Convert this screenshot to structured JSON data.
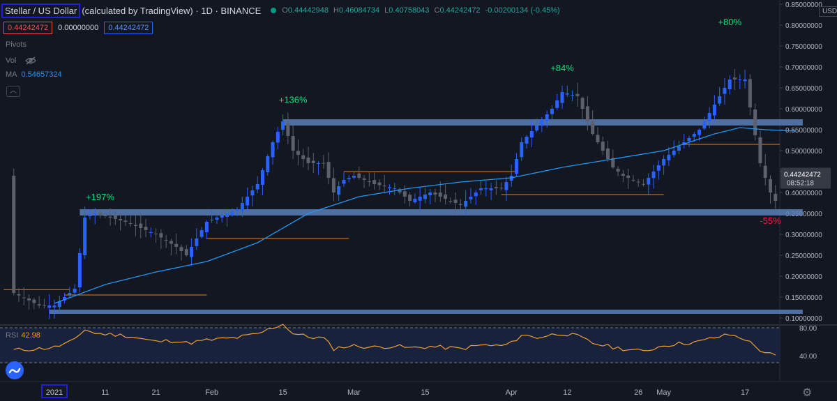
{
  "header": {
    "symbol": "Stellar / US Dollar",
    "meta": "(calculated by TradingView) · 1D · BINANCE",
    "ohlc": [
      {
        "k": "O",
        "v": "0.44442948"
      },
      {
        "k": "H",
        "v": "0.46084734"
      },
      {
        "k": "L",
        "v": "0.40758043"
      },
      {
        "k": "C",
        "v": "0.44242472"
      },
      {
        "k": "",
        "v": "-0.00200134 (-0.45%)"
      }
    ],
    "bid": "0.44242472",
    "spread": "0.00000000",
    "ask": "0.44242472",
    "pivots_label": "Pivots",
    "vol_label": "Vol",
    "ma_label": "MA",
    "ma_value": "0.54657324",
    "collapse_icon": "chevron-up-icon"
  },
  "currency": "USD",
  "price_badge": {
    "value": "0.44242472",
    "countdown": "08:52:18"
  },
  "rsi": {
    "label": "RSI",
    "value": "42.98"
  },
  "colors": {
    "bg": "#131722",
    "up": "#2962ff",
    "down": "#5d606b",
    "ma": "#2196f3",
    "zone": "#5b7fb8",
    "level": "#f57c00",
    "rsi": "#f0a030",
    "gain": "#00e676",
    "loss": "#ff1744"
  },
  "chart_data": {
    "type": "candlestick",
    "ylim": [
      0.1,
      0.85
    ],
    "y_ticks": [
      "0.85000000",
      "0.80000000",
      "0.75000000",
      "0.70000000",
      "0.65000000",
      "0.60000000",
      "0.55000000",
      "0.50000000",
      "0.45000000",
      "0.40000000",
      "0.35000000",
      "0.30000000",
      "0.25000000",
      "0.20000000",
      "0.15000000",
      "0.10000000"
    ],
    "x_ticks": [
      {
        "label": "2021",
        "day": 0,
        "highlight": true
      },
      {
        "label": "11",
        "day": 10
      },
      {
        "label": "21",
        "day": 20
      },
      {
        "label": "Feb",
        "day": 31
      },
      {
        "label": "15",
        "day": 45
      },
      {
        "label": "Mar",
        "day": 59
      },
      {
        "label": "15",
        "day": 73
      },
      {
        "label": "Apr",
        "day": 90
      },
      {
        "label": "12",
        "day": 101
      },
      {
        "label": "26",
        "day": 115
      },
      {
        "label": "May",
        "day": 120
      },
      {
        "label": "17",
        "day": 136
      }
    ],
    "anchors": [
      [
        -8,
        0.16
      ],
      [
        -3,
        0.13
      ],
      [
        0,
        0.13
      ],
      [
        4,
        0.17
      ],
      [
        6,
        0.34
      ],
      [
        8,
        0.35
      ],
      [
        14,
        0.33
      ],
      [
        20,
        0.3
      ],
      [
        24,
        0.27
      ],
      [
        26,
        0.25
      ],
      [
        30,
        0.33
      ],
      [
        36,
        0.36
      ],
      [
        40,
        0.42
      ],
      [
        43,
        0.52
      ],
      [
        45,
        0.57
      ],
      [
        47,
        0.5
      ],
      [
        50,
        0.47
      ],
      [
        53,
        0.47
      ],
      [
        55,
        0.4
      ],
      [
        57,
        0.43
      ],
      [
        59,
        0.44
      ],
      [
        63,
        0.42
      ],
      [
        67,
        0.41
      ],
      [
        70,
        0.38
      ],
      [
        74,
        0.4
      ],
      [
        80,
        0.37
      ],
      [
        84,
        0.41
      ],
      [
        88,
        0.41
      ],
      [
        90,
        0.44
      ],
      [
        92,
        0.52
      ],
      [
        95,
        0.56
      ],
      [
        98,
        0.6
      ],
      [
        100,
        0.64
      ],
      [
        103,
        0.63
      ],
      [
        106,
        0.54
      ],
      [
        110,
        0.46
      ],
      [
        112,
        0.44
      ],
      [
        114,
        0.43
      ],
      [
        116,
        0.42
      ],
      [
        120,
        0.48
      ],
      [
        124,
        0.52
      ],
      [
        127,
        0.55
      ],
      [
        130,
        0.61
      ],
      [
        133,
        0.67
      ],
      [
        136,
        0.67
      ],
      [
        139,
        0.47
      ],
      [
        141,
        0.4
      ],
      [
        143,
        0.36
      ],
      [
        146,
        0.44
      ]
    ],
    "ma_points": [
      [
        0,
        0.135
      ],
      [
        10,
        0.18
      ],
      [
        20,
        0.21
      ],
      [
        30,
        0.235
      ],
      [
        40,
        0.28
      ],
      [
        50,
        0.35
      ],
      [
        60,
        0.39
      ],
      [
        70,
        0.41
      ],
      [
        80,
        0.425
      ],
      [
        90,
        0.435
      ],
      [
        100,
        0.46
      ],
      [
        110,
        0.48
      ],
      [
        120,
        0.5
      ],
      [
        130,
        0.54
      ],
      [
        135,
        0.555
      ],
      [
        140,
        0.55
      ],
      [
        146,
        0.547
      ]
    ],
    "zones": [
      {
        "low": 0.345,
        "high": 0.36,
        "from": 5,
        "to": 146
      },
      {
        "low": 0.56,
        "high": 0.575,
        "from": 45,
        "to": 146
      },
      {
        "low": 0.11,
        "high": 0.12,
        "from": -1,
        "to": 146
      }
    ],
    "levels": [
      {
        "y": 0.168,
        "from": -10,
        "to": 3
      },
      {
        "y": 0.155,
        "from": 2,
        "to": 30
      },
      {
        "y": 0.29,
        "from": 30,
        "to": 58
      },
      {
        "y": 0.45,
        "from": 57,
        "to": 91
      },
      {
        "y": 0.395,
        "from": 88,
        "to": 120
      },
      {
        "y": 0.515,
        "from": 124,
        "to": 146
      }
    ],
    "annotations": [
      {
        "text": "+197%",
        "day": 9,
        "y": 0.382,
        "color": "gain"
      },
      {
        "text": "+136%",
        "day": 47,
        "y": 0.614,
        "color": "gain"
      },
      {
        "text": "+84%",
        "day": 100,
        "y": 0.69,
        "color": "gain"
      },
      {
        "text": "+80%",
        "day": 133,
        "y": 0.8,
        "color": "gain"
      },
      {
        "text": "-55%",
        "day": 141,
        "y": 0.325,
        "color": "loss"
      }
    ],
    "rsi_ylim": [
      20,
      85
    ],
    "rsi_ticks": [
      "80.00",
      "40.00"
    ],
    "rsi_points": [
      [
        -8,
        48
      ],
      [
        -3,
        50
      ],
      [
        0,
        52
      ],
      [
        4,
        62
      ],
      [
        6,
        78
      ],
      [
        8,
        72
      ],
      [
        14,
        69
      ],
      [
        20,
        60
      ],
      [
        24,
        62
      ],
      [
        26,
        58
      ],
      [
        30,
        62
      ],
      [
        36,
        66
      ],
      [
        40,
        71
      ],
      [
        43,
        80
      ],
      [
        45,
        86
      ],
      [
        47,
        72
      ],
      [
        50,
        67
      ],
      [
        53,
        65
      ],
      [
        55,
        50
      ],
      [
        57,
        53
      ],
      [
        59,
        54
      ],
      [
        63,
        52
      ],
      [
        67,
        54
      ],
      [
        70,
        51
      ],
      [
        74,
        53
      ],
      [
        80,
        50
      ],
      [
        84,
        55
      ],
      [
        88,
        54
      ],
      [
        90,
        58
      ],
      [
        92,
        70
      ],
      [
        95,
        66
      ],
      [
        98,
        70
      ],
      [
        100,
        72
      ],
      [
        103,
        68
      ],
      [
        106,
        58
      ],
      [
        110,
        52
      ],
      [
        112,
        50
      ],
      [
        114,
        48
      ],
      [
        116,
        46
      ],
      [
        120,
        55
      ],
      [
        124,
        58
      ],
      [
        127,
        60
      ],
      [
        130,
        66
      ],
      [
        133,
        70
      ],
      [
        136,
        64
      ],
      [
        139,
        48
      ],
      [
        141,
        42
      ],
      [
        143,
        36
      ],
      [
        146,
        43
      ]
    ]
  }
}
